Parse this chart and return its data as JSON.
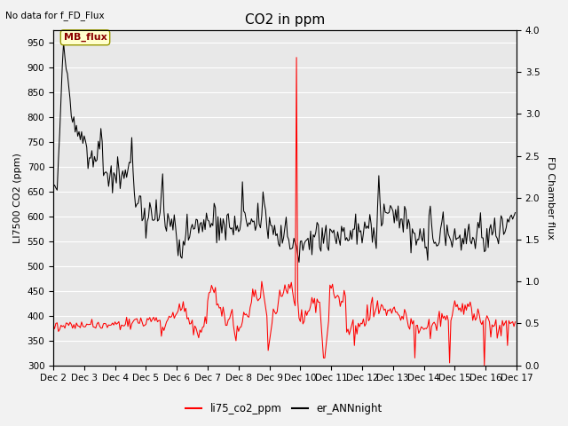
{
  "title": "CO2 in ppm",
  "top_left_text": "No data for f_FD_Flux",
  "ylabel_left": "LI7500 CO2 (ppm)",
  "ylabel_right": "FD Chamber flux",
  "ylim_left": [
    300,
    975
  ],
  "ylim_right": [
    0.0,
    4.0
  ],
  "yticks_left": [
    300,
    350,
    400,
    450,
    500,
    550,
    600,
    650,
    700,
    750,
    800,
    850,
    900,
    950
  ],
  "yticks_right": [
    0.0,
    0.5,
    1.0,
    1.5,
    2.0,
    2.5,
    3.0,
    3.5,
    4.0
  ],
  "xticklabels": [
    "Dec 2",
    "Dec 3",
    "Dec 4",
    "Dec 5",
    "Dec 6",
    "Dec 7",
    "Dec 8",
    "Dec 9",
    "Dec 10",
    "Dec 11",
    "Dec 12",
    "Dec 13",
    "Dec 14",
    "Dec 15",
    "Dec 16",
    "Dec 17"
  ],
  "legend_labels": [
    "li75_co2_ppm",
    "er_ANNnight"
  ],
  "legend_colors": [
    "#ff0000",
    "#000000"
  ],
  "annotation_text": "MB_flux",
  "line1_color": "#ff0000",
  "line2_color": "#000000",
  "background_color": "#f2f2f2",
  "axes_background": "#e8e8e8",
  "grid_color": "#ffffff",
  "title_fontsize": 11,
  "label_fontsize": 8,
  "tick_fontsize": 7.5
}
